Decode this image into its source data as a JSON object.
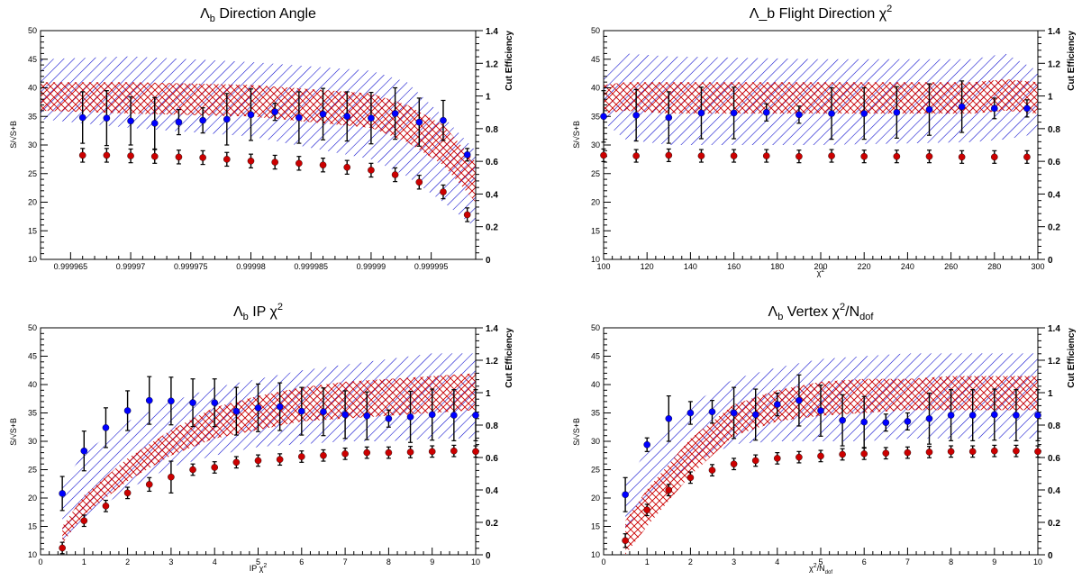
{
  "colors": {
    "blue": "#0000ff",
    "red": "#cc0000",
    "blue_band": "#0000cc",
    "red_band": "#cc0000",
    "errbar": "#000000"
  },
  "chart_data": [
    {
      "type": "scatter",
      "id": "direction-angle",
      "title_main": "Λ",
      "title_sub": "b",
      "title_sup": "",
      "title_rest": " Direction Angle",
      "xlabel_main": "",
      "xlabel_sub": "",
      "xlabel_sup": "",
      "ylabel": "S/√S+B",
      "y2label": "Cut Efficiency",
      "xlim": [
        0.9999625,
        0.9999987
      ],
      "ylim": [
        10,
        50
      ],
      "y2lim": [
        0,
        1.4
      ],
      "xticks": [
        0.999965,
        0.99997,
        0.999975,
        0.99998,
        0.999985,
        0.99999,
        0.999995
      ],
      "xticklabels": [
        "0.999965",
        "0.99997",
        "0.999975",
        "0.99998",
        "0.999985",
        "0.99999",
        "0.999995"
      ],
      "yticks": [
        10,
        15,
        20,
        25,
        30,
        35,
        40,
        45,
        50
      ],
      "y2ticks": [
        0,
        0.2,
        0.4,
        0.6,
        0.8,
        1,
        1.2,
        1.4
      ],
      "y2ticklabels": [
        "0",
        "0.2",
        "0.4",
        "0.6",
        "0.8",
        "1",
        "1.2",
        "1.4"
      ],
      "series": [
        {
          "role": "significance",
          "color": "blue",
          "axis": "left",
          "x": [
            0.999966,
            0.999968,
            0.99997,
            0.999972,
            0.999974,
            0.999976,
            0.999978,
            0.99998,
            0.999982,
            0.999984,
            0.999986,
            0.999988,
            0.99999,
            0.999992,
            0.999994,
            0.999996,
            0.999998
          ],
          "y": [
            34.8,
            34.7,
            34.2,
            33.8,
            34.0,
            34.3,
            34.5,
            35.3,
            35.8,
            34.8,
            35.4,
            35.0,
            34.7,
            35.5,
            34.0,
            34.3,
            28.3
          ],
          "err": [
            4.5,
            4.8,
            4.2,
            4.5,
            2.2,
            2.2,
            4.5,
            4.5,
            1.5,
            4.5,
            4.5,
            4.3,
            4.5,
            4.5,
            4.2,
            3.5,
            1.1
          ]
        },
        {
          "role": "efficiency",
          "color": "red",
          "axis": "left",
          "x": [
            0.999966,
            0.999968,
            0.99997,
            0.999972,
            0.999974,
            0.999976,
            0.999978,
            0.99998,
            0.999982,
            0.999984,
            0.999986,
            0.999988,
            0.99999,
            0.999992,
            0.999994,
            0.999996,
            0.999998
          ],
          "y": [
            28.2,
            28.2,
            28.1,
            28.0,
            27.9,
            27.8,
            27.5,
            27.2,
            27.0,
            26.8,
            26.5,
            26.1,
            25.6,
            24.8,
            23.5,
            21.8,
            17.8
          ],
          "err": [
            1.2,
            1.2,
            1.2,
            1.2,
            1.2,
            1.2,
            1.2,
            1.2,
            1.2,
            1.2,
            1.2,
            1.2,
            1.2,
            1.2,
            1.2,
            1.2,
            1.2
          ]
        }
      ],
      "bands": [
        {
          "color": "blue_band",
          "hatch": "diag",
          "x": [
            0.9999625,
            0.99997,
            0.99998,
            0.99999,
            0.999993,
            0.999996,
            0.9999987
          ],
          "lower": [
            34.5,
            33.0,
            31.5,
            27.5,
            24.5,
            20.0,
            15.5
          ],
          "upper": [
            45.0,
            45.5,
            44.5,
            43.0,
            41.0,
            35.0,
            29.0
          ]
        },
        {
          "color": "red_band",
          "hatch": "cross",
          "x": [
            0.9999625,
            0.99997,
            0.99998,
            0.99999,
            0.999993,
            0.999996,
            0.9999987
          ],
          "lower": [
            36.0,
            35.5,
            35.0,
            33.0,
            30.5,
            26.5,
            20.0
          ],
          "upper": [
            41.0,
            41.0,
            40.5,
            39.0,
            37.0,
            33.5,
            27.0
          ]
        }
      ]
    },
    {
      "type": "scatter",
      "id": "flight-direction",
      "title_main": "Λ_b Flight Direction χ",
      "title_sub": "",
      "title_sup": "2",
      "title_rest": "",
      "xlabel_main": "χ",
      "xlabel_sub": "",
      "xlabel_sup": "2",
      "ylabel": "S/√S+B",
      "y2label": "Cut Efficiency",
      "xlim": [
        100,
        300
      ],
      "ylim": [
        10,
        50
      ],
      "y2lim": [
        0,
        1.4
      ],
      "xticks": [
        100,
        120,
        140,
        160,
        180,
        200,
        220,
        240,
        260,
        280,
        300
      ],
      "xticklabels": [
        "100",
        "120",
        "140",
        "160",
        "180",
        "200",
        "220",
        "240",
        "260",
        "280",
        "300"
      ],
      "yticks": [
        10,
        15,
        20,
        25,
        30,
        35,
        40,
        45,
        50
      ],
      "y2ticks": [
        0,
        0.2,
        0.4,
        0.6,
        0.8,
        1,
        1.2,
        1.4
      ],
      "y2ticklabels": [
        "0",
        "0.2",
        "0.4",
        "0.6",
        "0.8",
        "1",
        "1.2",
        "1.4"
      ],
      "series": [
        {
          "role": "significance",
          "color": "blue",
          "axis": "left",
          "x": [
            100,
            115,
            130,
            145,
            160,
            175,
            190,
            205,
            220,
            235,
            250,
            265,
            280,
            295
          ],
          "y": [
            35.0,
            35.2,
            34.8,
            35.6,
            35.6,
            35.7,
            35.3,
            35.5,
            35.5,
            35.7,
            36.2,
            36.7,
            36.4,
            36.4
          ],
          "err": [
            4.5,
            4.5,
            4.5,
            4.5,
            4.5,
            1.5,
            1.5,
            4.5,
            4.5,
            4.5,
            4.5,
            4.5,
            1.8,
            1.5
          ]
        },
        {
          "role": "efficiency",
          "color": "red",
          "axis": "left",
          "x": [
            100,
            115,
            130,
            145,
            160,
            175,
            190,
            205,
            220,
            235,
            250,
            265,
            280,
            295
          ],
          "y": [
            28.2,
            28.1,
            28.2,
            28.1,
            28.1,
            28.1,
            28.0,
            28.1,
            28.0,
            28.0,
            28.0,
            27.9,
            27.9,
            27.9
          ],
          "err": [
            1.1,
            1.1,
            1.1,
            1.1,
            1.1,
            1.1,
            1.1,
            1.1,
            1.1,
            1.1,
            1.1,
            1.1,
            1.1,
            1.1
          ]
        }
      ],
      "bands": [
        {
          "color": "blue_band",
          "hatch": "diag",
          "x": [
            100,
            110,
            130,
            200,
            270,
            285,
            300
          ],
          "lower": [
            34.0,
            31.0,
            30.0,
            30.0,
            30.5,
            31.0,
            32.0
          ],
          "upper": [
            42.0,
            46.0,
            45.5,
            45.0,
            45.0,
            46.0,
            43.0
          ]
        },
        {
          "color": "red_band",
          "hatch": "cross",
          "x": [
            100,
            110,
            130,
            200,
            270,
            285,
            300
          ],
          "lower": [
            35.5,
            36.0,
            35.5,
            35.5,
            35.5,
            36.0,
            35.5
          ],
          "upper": [
            40.5,
            41.0,
            41.0,
            41.0,
            41.0,
            41.5,
            41.0
          ]
        }
      ]
    },
    {
      "type": "scatter",
      "id": "ip-chi2",
      "title_main": "Λ",
      "title_sub": "b",
      "title_sup": "",
      "title_rest": " IP χ",
      "title_rest_sup": "2",
      "xlabel_main": "IP χ",
      "xlabel_sub": "",
      "xlabel_sup": "2",
      "ylabel": "S/√S+B",
      "y2label": "Cut Efficiency",
      "xlim": [
        0,
        10
      ],
      "ylim": [
        10,
        50
      ],
      "y2lim": [
        0,
        1.4
      ],
      "xticks": [
        0,
        1,
        2,
        3,
        4,
        5,
        6,
        7,
        8,
        9,
        10
      ],
      "xticklabels": [
        "0",
        "1",
        "2",
        "3",
        "4",
        "5",
        "6",
        "7",
        "8",
        "9",
        "10"
      ],
      "yticks": [
        10,
        15,
        20,
        25,
        30,
        35,
        40,
        45,
        50
      ],
      "y2ticks": [
        0,
        0.2,
        0.4,
        0.6,
        0.8,
        1,
        1.2,
        1.4
      ],
      "y2ticklabels": [
        "0",
        "0.2",
        "0.4",
        "0.6",
        "0.8",
        "1",
        "1.2",
        "1.4"
      ],
      "series": [
        {
          "role": "significance",
          "color": "blue",
          "axis": "left",
          "x": [
            0.5,
            1,
            1.5,
            2,
            2.5,
            3,
            3.5,
            4,
            4.5,
            5,
            5.5,
            6,
            6.5,
            7,
            7.5,
            8,
            8.5,
            9,
            9.5,
            10
          ],
          "y": [
            20.8,
            28.3,
            32.4,
            35.4,
            37.2,
            37.1,
            36.8,
            36.8,
            35.3,
            35.9,
            36.1,
            35.3,
            35.2,
            34.7,
            34.5,
            34.0,
            34.3,
            34.7,
            34.6,
            34.6
          ],
          "err": [
            3.0,
            3.5,
            3.5,
            3.5,
            4.2,
            4.2,
            4.2,
            4.2,
            4.2,
            4.2,
            4.2,
            4.2,
            4.2,
            4.2,
            4.2,
            1.5,
            4.5,
            4.5,
            4.5,
            4.5
          ]
        },
        {
          "role": "efficiency",
          "color": "red",
          "axis": "left",
          "x": [
            0.5,
            1,
            1.5,
            2,
            2.5,
            3,
            3.5,
            4,
            4.5,
            5,
            5.5,
            6,
            6.5,
            7,
            7.5,
            8,
            8.5,
            9,
            9.5,
            10
          ],
          "y": [
            11.2,
            16.0,
            18.6,
            20.9,
            22.4,
            23.7,
            25.0,
            25.4,
            26.3,
            26.6,
            26.8,
            27.3,
            27.5,
            27.8,
            28.0,
            28.0,
            28.1,
            28.2,
            28.3,
            28.2
          ],
          "err": [
            1.0,
            1.0,
            1.0,
            1.0,
            1.2,
            2.8,
            1.0,
            1.0,
            1.0,
            1.0,
            1.0,
            1.0,
            1.0,
            1.0,
            1.0,
            1.0,
            1.0,
            1.0,
            1.0,
            1.0
          ]
        }
      ],
      "bands": [
        {
          "color": "blue_band",
          "hatch": "diag",
          "x": [
            0.5,
            1,
            2,
            3,
            4,
            5,
            6,
            7,
            8,
            9,
            10
          ],
          "lower": [
            12.5,
            16.5,
            21.5,
            25.5,
            27.5,
            29.0,
            29.5,
            30.0,
            30.0,
            30.5,
            30.5
          ],
          "upper": [
            22.5,
            28.0,
            33.5,
            37.0,
            39.5,
            41.0,
            42.5,
            43.5,
            44.5,
            45.5,
            45.5
          ]
        },
        {
          "color": "red_band",
          "hatch": "cross",
          "x": [
            0.5,
            1,
            2,
            3,
            4,
            5,
            6,
            7,
            8,
            9,
            10
          ],
          "lower": [
            12.0,
            17.0,
            23.0,
            27.5,
            30.5,
            32.0,
            33.5,
            34.0,
            34.5,
            35.0,
            35.5
          ],
          "upper": [
            15.0,
            20.5,
            27.0,
            32.0,
            36.0,
            38.0,
            39.5,
            40.5,
            41.0,
            41.5,
            42.0
          ]
        }
      ]
    },
    {
      "type": "scatter",
      "id": "vertex-chi2",
      "title_main": "Λ",
      "title_sub": "b",
      "title_sup": "",
      "title_rest": " Vertex χ",
      "title_rest_sup": "2",
      "title_tail": "/N",
      "title_tail_sub": "dof",
      "xlabel_main": "χ",
      "xlabel_sub": "dof",
      "xlabel_sup": "2",
      "xlabel_mid": "/N",
      "ylabel": "S/√S+B",
      "y2label": "Cut Efficiency",
      "xlim": [
        0,
        10
      ],
      "ylim": [
        10,
        50
      ],
      "y2lim": [
        0,
        1.4
      ],
      "xticks": [
        0,
        1,
        2,
        3,
        4,
        5,
        6,
        7,
        8,
        9,
        10
      ],
      "xticklabels": [
        "0",
        "1",
        "2",
        "3",
        "4",
        "5",
        "6",
        "7",
        "8",
        "9",
        "10"
      ],
      "yticks": [
        10,
        15,
        20,
        25,
        30,
        35,
        40,
        45,
        50
      ],
      "y2ticks": [
        0,
        0.2,
        0.4,
        0.6,
        0.8,
        1,
        1.2,
        1.4
      ],
      "y2ticklabels": [
        "0",
        "0.2",
        "0.4",
        "0.6",
        "0.8",
        "1",
        "1.2",
        "1.4"
      ],
      "series": [
        {
          "role": "significance",
          "color": "blue",
          "axis": "left",
          "x": [
            0.5,
            1,
            1.5,
            2,
            2.5,
            3,
            3.5,
            4,
            4.5,
            5,
            5.5,
            6,
            6.5,
            7,
            7.5,
            8,
            8.5,
            9,
            9.5,
            10
          ],
          "y": [
            20.6,
            29.4,
            34.0,
            35.0,
            35.2,
            35.0,
            34.7,
            36.5,
            37.2,
            35.4,
            33.7,
            33.4,
            33.3,
            33.5,
            34.0,
            34.6,
            34.6,
            34.7,
            34.6,
            34.6
          ],
          "err": [
            3.0,
            1.2,
            4.0,
            2.0,
            2.0,
            4.5,
            4.5,
            2.0,
            4.5,
            4.5,
            4.5,
            4.5,
            1.5,
            1.5,
            4.5,
            4.5,
            4.5,
            4.5,
            4.5,
            4.5
          ]
        },
        {
          "role": "efficiency",
          "color": "red",
          "axis": "left",
          "x": [
            0.5,
            1,
            1.5,
            2,
            2.5,
            3,
            3.5,
            4,
            4.5,
            5,
            5.5,
            6,
            6.5,
            7,
            7.5,
            8,
            8.5,
            9,
            9.5,
            10
          ],
          "y": [
            12.5,
            17.9,
            21.4,
            23.6,
            24.9,
            26.0,
            26.6,
            27.0,
            27.2,
            27.4,
            27.7,
            27.8,
            27.9,
            28.0,
            28.1,
            28.2,
            28.2,
            28.3,
            28.3,
            28.2
          ],
          "err": [
            1.2,
            1.0,
            1.0,
            1.0,
            1.0,
            1.0,
            1.0,
            1.0,
            1.0,
            1.0,
            1.0,
            1.0,
            1.0,
            1.0,
            1.0,
            1.0,
            1.0,
            1.0,
            1.0,
            1.0
          ]
        }
      ],
      "bands": [
        {
          "color": "blue_band",
          "hatch": "diag",
          "x": [
            0.5,
            1,
            2,
            3,
            4,
            5,
            6,
            7,
            8,
            9,
            10
          ],
          "lower": [
            14.5,
            19.5,
            26.0,
            29.5,
            30.0,
            30.0,
            30.0,
            30.5,
            30.5,
            30.5,
            30.5
          ],
          "upper": [
            22.5,
            28.5,
            36.5,
            41.0,
            43.0,
            44.5,
            45.0,
            45.5,
            45.5,
            45.5,
            45.5
          ]
        },
        {
          "color": "red_band",
          "hatch": "cross",
          "x": [
            0.5,
            1,
            2,
            3,
            4,
            5,
            6,
            7,
            8,
            9,
            10
          ],
          "lower": [
            10.0,
            15.0,
            24.0,
            31.0,
            33.5,
            34.5,
            35.0,
            35.5,
            35.5,
            35.5,
            35.5
          ],
          "upper": [
            16.0,
            21.5,
            30.5,
            36.5,
            39.0,
            40.5,
            41.0,
            41.0,
            41.5,
            41.5,
            41.5
          ]
        }
      ]
    }
  ]
}
